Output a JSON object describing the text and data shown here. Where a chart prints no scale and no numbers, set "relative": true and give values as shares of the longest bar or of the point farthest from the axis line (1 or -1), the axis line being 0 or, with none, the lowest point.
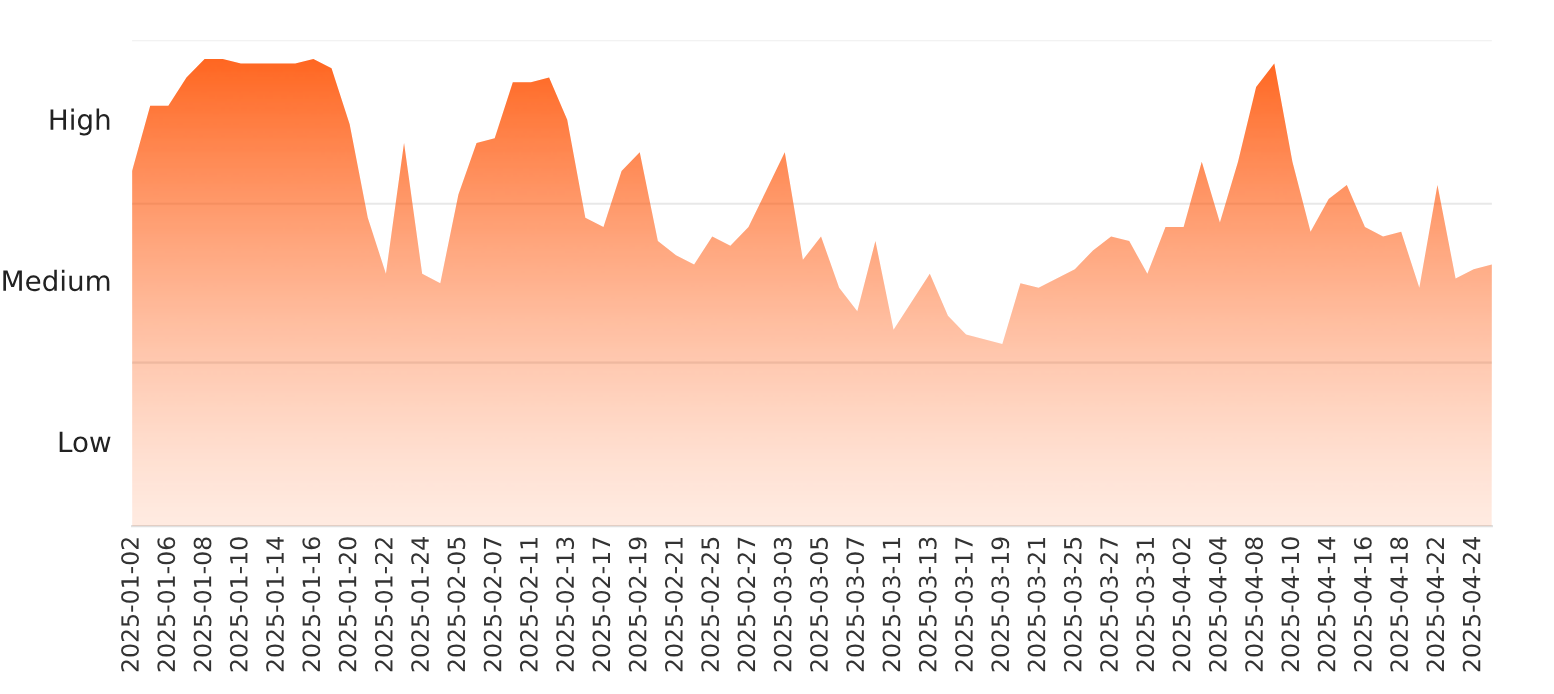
{
  "chart_data": {
    "type": "area",
    "relative": true,
    "categories": [
      "2025-01-02",
      null,
      "2025-01-06",
      null,
      "2025-01-08",
      null,
      "2025-01-10",
      null,
      "2025-01-14",
      null,
      "2025-01-16",
      null,
      "2025-01-20",
      null,
      "2025-01-22",
      null,
      "2025-01-24",
      null,
      "2025-02-05",
      null,
      "2025-02-07",
      null,
      "2025-02-11",
      null,
      "2025-02-13",
      null,
      "2025-02-17",
      null,
      "2025-02-19",
      null,
      "2025-02-21",
      null,
      "2025-02-25",
      null,
      "2025-02-27",
      null,
      "2025-03-03",
      null,
      "2025-03-05",
      null,
      "2025-03-07",
      null,
      "2025-03-11",
      null,
      "2025-03-13",
      null,
      "2025-03-17",
      null,
      "2025-03-19",
      null,
      "2025-03-21",
      null,
      "2025-03-25",
      null,
      "2025-03-27",
      null,
      "2025-03-31",
      null,
      "2025-04-02",
      null,
      "2025-04-04",
      null,
      "2025-04-08",
      null,
      "2025-04-10",
      null,
      "2025-04-14",
      null,
      "2025-04-16",
      null,
      "2025-04-18",
      null,
      "2025-04-22",
      null,
      "2025-04-24",
      null
    ],
    "series": [
      {
        "color": "#ff5000",
        "values": [
          0.76,
          0.9,
          0.9,
          0.96,
          1,
          1,
          0.99,
          0.99,
          0.99,
          0.99,
          1,
          0.98,
          0.86,
          0.66,
          0.54,
          0.82,
          0.54,
          0.52,
          0.71,
          0.82,
          0.83,
          0.95,
          0.95,
          0.96,
          0.87,
          0.66,
          0.64,
          0.76,
          0.8,
          0.61,
          0.58,
          0.56,
          0.62,
          0.6,
          0.64,
          0.72,
          0.8,
          0.57,
          0.62,
          0.51,
          0.46,
          0.61,
          0.42,
          0.48,
          0.54,
          0.45,
          0.41,
          0.4,
          0.39,
          0.52,
          0.51,
          0.53,
          0.55,
          0.59,
          0.62,
          0.61,
          0.54,
          0.64,
          0.64,
          0.78,
          0.65,
          0.78,
          0.94,
          0.99,
          0.78,
          0.63,
          0.7,
          0.73,
          0.64,
          0.62,
          0.63,
          0.51,
          0.73,
          0.53,
          0.55,
          0.56
        ]
      }
    ],
    "ref_lines": [
      {
        "axis": "y",
        "value": 1.04,
        "color": "#eeeeee"
      },
      {
        "axis": "y",
        "value": 0.69,
        "color": "#e8e8e8"
      },
      {
        "axis": "y",
        "value": 0.35,
        "color": "#e8e8e8"
      }
    ],
    "annotations": [
      "High",
      "Medium",
      "Low"
    ]
  }
}
